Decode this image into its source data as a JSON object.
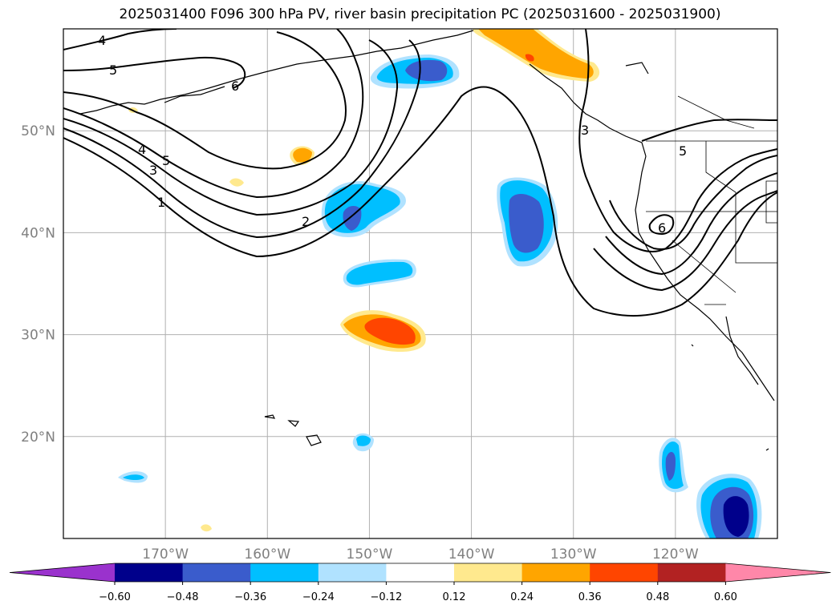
{
  "title": "2025031400 F096 300 hPa PV, river basin precipitation PC (2025031600 - 2025031900)",
  "map": {
    "projection": "PlateCarree",
    "lon_range": [
      -180,
      -110
    ],
    "lat_range": [
      10,
      60
    ],
    "gridlines": true,
    "lat_ticks": [
      {
        "value": 20,
        "label": "20°N"
      },
      {
        "value": 30,
        "label": "30°N"
      },
      {
        "value": 40,
        "label": "40°N"
      },
      {
        "value": 50,
        "label": "50°N"
      }
    ],
    "lon_ticks": [
      {
        "value": -170,
        "label": "170°W"
      },
      {
        "value": -160,
        "label": "160°W"
      },
      {
        "value": -150,
        "label": "150°W"
      },
      {
        "value": -140,
        "label": "140°W"
      },
      {
        "value": -130,
        "label": "130°W"
      },
      {
        "value": -120,
        "label": "120°W"
      }
    ],
    "pv_contour_levels": [
      1,
      2,
      3,
      4,
      5,
      6
    ],
    "pv_contour_labels": [
      "4",
      "5",
      "6",
      "4",
      "3",
      "5",
      "1",
      "2",
      "3",
      "5",
      "6"
    ]
  },
  "colorbar": {
    "ticks": [
      "−0.60",
      "−0.48",
      "−0.36",
      "−0.24",
      "−0.12",
      "0.12",
      "0.24",
      "0.36",
      "0.48",
      "0.60"
    ],
    "colors": [
      "#9a32cd",
      "#00008b",
      "#3a5ccc",
      "#00bfff",
      "#b0e2ff",
      "#ffffff",
      "#ffe98e",
      "#ffa500",
      "#ff4500",
      "#b22222",
      "#ff87a9"
    ],
    "extend": "both"
  },
  "colors": {
    "blue_dark": "#3a5ccc",
    "blue_mid": "#00bfff",
    "blue_light": "#b0e2ff",
    "navy": "#00008b",
    "yellow": "#ffe98e",
    "orange": "#ffa500",
    "red_orange": "#ff4500"
  }
}
